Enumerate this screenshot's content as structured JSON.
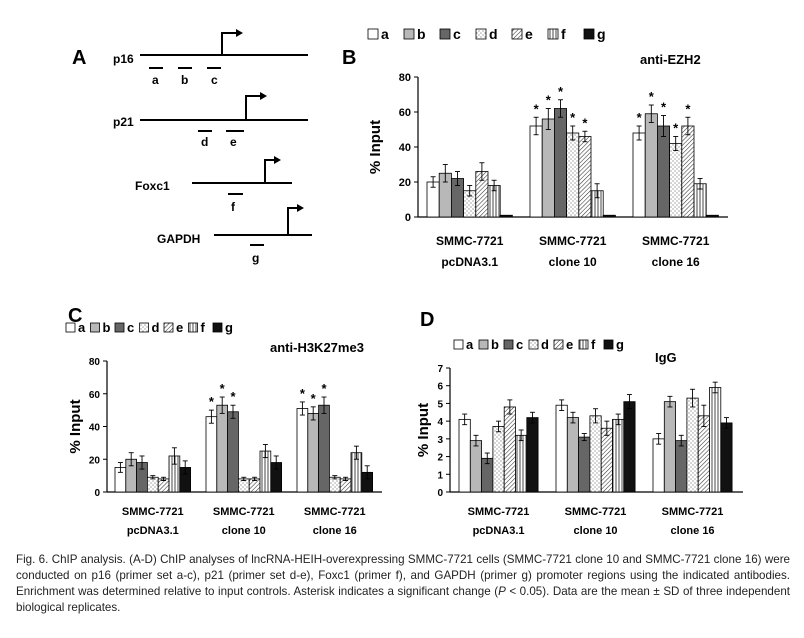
{
  "figure": {
    "panel_labels": [
      "A",
      "B",
      "C",
      "D"
    ],
    "legend_keys": [
      "a",
      "b",
      "c",
      "d",
      "e",
      "f",
      "g"
    ],
    "series_styles": [
      {
        "key": "a",
        "fill": "#ffffff",
        "pattern": "none"
      },
      {
        "key": "b",
        "fill": "#b8b8b8",
        "pattern": "none"
      },
      {
        "key": "c",
        "fill": "#666666",
        "pattern": "none"
      },
      {
        "key": "d",
        "fill": "#ffffff",
        "pattern": "dots"
      },
      {
        "key": "e",
        "fill": "#ffffff",
        "pattern": "diagonal"
      },
      {
        "key": "f",
        "fill": "#ffffff",
        "pattern": "vertical"
      },
      {
        "key": "g",
        "fill": "#111111",
        "pattern": "none"
      }
    ]
  },
  "diagram": {
    "genes": [
      {
        "name": "p16",
        "primers": [
          "a",
          "b",
          "c"
        ]
      },
      {
        "name": "p21",
        "primers": [
          "d",
          "e"
        ]
      },
      {
        "name": "Foxc1",
        "primers": [
          "f"
        ]
      },
      {
        "name": "GAPDH",
        "primers": [
          "g"
        ]
      }
    ]
  },
  "chart_data": [
    {
      "panel": "B",
      "type": "bar",
      "title": "anti-EZH2",
      "ylabel": "% Input",
      "ylim": [
        0,
        80
      ],
      "yticks": [
        0,
        20,
        40,
        60,
        80
      ],
      "categories": [
        [
          "SMMC-7721",
          "pcDNA3.1"
        ],
        [
          "SMMC-7721",
          "clone 10"
        ],
        [
          "SMMC-7721",
          "clone 16"
        ]
      ],
      "series": [
        {
          "name": "a",
          "values": [
            20,
            52,
            48
          ],
          "errors": [
            3,
            5,
            4
          ]
        },
        {
          "name": "b",
          "values": [
            25,
            56,
            59
          ],
          "errors": [
            5,
            6,
            5
          ]
        },
        {
          "name": "c",
          "values": [
            22,
            62,
            52
          ],
          "errors": [
            4,
            5,
            6
          ]
        },
        {
          "name": "d",
          "values": [
            15,
            48,
            42
          ],
          "errors": [
            3,
            4,
            4
          ]
        },
        {
          "name": "e",
          "values": [
            26,
            46,
            52
          ],
          "errors": [
            5,
            3,
            5
          ]
        },
        {
          "name": "f",
          "values": [
            18,
            15,
            19
          ],
          "errors": [
            3,
            4,
            3
          ]
        },
        {
          "name": "g",
          "values": [
            1,
            1,
            1
          ],
          "errors": [
            0,
            0,
            0
          ]
        }
      ],
      "significance": [
        [
          false,
          false,
          false,
          false,
          false,
          false,
          false
        ],
        [
          true,
          true,
          true,
          true,
          true,
          false,
          false
        ],
        [
          true,
          true,
          true,
          true,
          true,
          false,
          false
        ]
      ],
      "significance_marker": "*"
    },
    {
      "panel": "C",
      "type": "bar",
      "title": "anti-H3K27me3",
      "ylabel": "% Input",
      "ylim": [
        0,
        80
      ],
      "yticks": [
        0,
        20,
        40,
        60,
        80
      ],
      "categories": [
        [
          "SMMC-7721",
          "pcDNA3.1"
        ],
        [
          "SMMC-7721",
          "clone 10"
        ],
        [
          "SMMC-7721",
          "clone 16"
        ]
      ],
      "series": [
        {
          "name": "a",
          "values": [
            15,
            46,
            51
          ],
          "errors": [
            3,
            4,
            4
          ]
        },
        {
          "name": "b",
          "values": [
            20,
            53,
            48
          ],
          "errors": [
            4,
            5,
            4
          ]
        },
        {
          "name": "c",
          "values": [
            18,
            49,
            53
          ],
          "errors": [
            4,
            4,
            5
          ]
        },
        {
          "name": "d",
          "values": [
            9,
            8,
            9
          ],
          "errors": [
            1,
            1,
            1
          ]
        },
        {
          "name": "e",
          "values": [
            8,
            8,
            8
          ],
          "errors": [
            1,
            1,
            1
          ]
        },
        {
          "name": "f",
          "values": [
            22,
            25,
            24
          ],
          "errors": [
            5,
            4,
            4
          ]
        },
        {
          "name": "g",
          "values": [
            15,
            18,
            12
          ],
          "errors": [
            4,
            4,
            4
          ]
        }
      ],
      "significance": [
        [
          false,
          false,
          false,
          false,
          false,
          false,
          false
        ],
        [
          true,
          true,
          true,
          false,
          false,
          false,
          false
        ],
        [
          true,
          true,
          true,
          false,
          false,
          false,
          false
        ]
      ],
      "significance_marker": "*"
    },
    {
      "panel": "D",
      "type": "bar",
      "title": "IgG",
      "ylabel": "% Input",
      "ylim": [
        0,
        7
      ],
      "yticks": [
        0,
        1,
        2,
        3,
        4,
        5,
        6,
        7
      ],
      "categories": [
        [
          "SMMC-7721",
          "pcDNA3.1"
        ],
        [
          "SMMC-7721",
          "clone 10"
        ],
        [
          "SMMC-7721",
          "clone 16"
        ]
      ],
      "series": [
        {
          "name": "a",
          "values": [
            4.1,
            4.9,
            3.0
          ],
          "errors": [
            0.3,
            0.3,
            0.3
          ]
        },
        {
          "name": "b",
          "values": [
            2.9,
            4.2,
            5.1
          ],
          "errors": [
            0.3,
            0.3,
            0.3
          ]
        },
        {
          "name": "c",
          "values": [
            1.9,
            3.1,
            2.9
          ],
          "errors": [
            0.3,
            0.2,
            0.3
          ]
        },
        {
          "name": "d",
          "values": [
            3.7,
            4.3,
            5.3
          ],
          "errors": [
            0.3,
            0.4,
            0.5
          ]
        },
        {
          "name": "e",
          "values": [
            4.8,
            3.6,
            4.3
          ],
          "errors": [
            0.4,
            0.4,
            0.6
          ]
        },
        {
          "name": "f",
          "values": [
            3.2,
            4.1,
            5.9
          ],
          "errors": [
            0.3,
            0.3,
            0.3
          ]
        },
        {
          "name": "g",
          "values": [
            4.2,
            5.1,
            3.9
          ],
          "errors": [
            0.3,
            0.4,
            0.3
          ]
        }
      ],
      "significance": [
        [
          false,
          false,
          false,
          false,
          false,
          false,
          false
        ],
        [
          false,
          false,
          false,
          false,
          false,
          false,
          false
        ],
        [
          false,
          false,
          false,
          false,
          false,
          false,
          false
        ]
      ],
      "significance_marker": "*"
    }
  ],
  "caption": {
    "text_1": "Fig. 6. ChIP analysis. (A-D) ChIP analyses of lncRNA-HEIH-overexpressing SMMC-7721 cells (SMMC-7721 clone 10 and SMMC-7721 clone 16) were conducted on p16 (primer set a-c), p21 (primer set d-e), Foxc1 (primer f), and GAPDH (primer g) promoter regions using the indicated antibodies. Enrichment was determined relative to input controls. Asterisk indicates a significant change (",
    "p_symbol": "P",
    "text_2": " < 0.05). Data are the mean ± SD of three independent biological replicates."
  }
}
